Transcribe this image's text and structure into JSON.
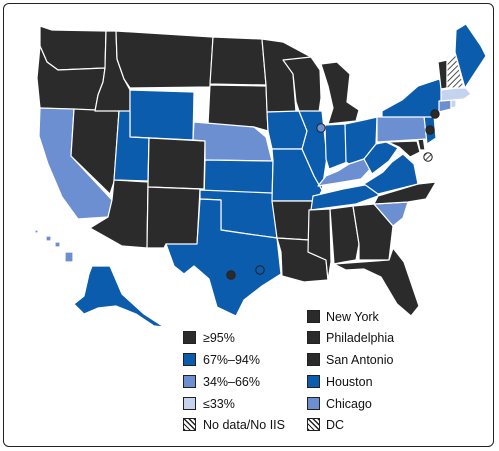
{
  "legend": {
    "coverage": [
      {
        "label": "≥95%",
        "color": "#2b2b2b"
      },
      {
        "label": "67%–94%",
        "color": "#0b5cad"
      },
      {
        "label": "34%–66%",
        "color": "#6b8fd1"
      },
      {
        "label": "≤33%",
        "color": "#c5d3ee"
      },
      {
        "label": "No data/No IIS",
        "color": "hatch"
      }
    ],
    "cities": [
      {
        "label": "New York",
        "color": "#2b2b2b"
      },
      {
        "label": "Philadelphia",
        "color": "#2b2b2b"
      },
      {
        "label": "San Antonio",
        "color": "#2b2b2b"
      },
      {
        "label": "Houston",
        "color": "#0b5cad"
      },
      {
        "label": "Chicago",
        "color": "#6b8fd1"
      },
      {
        "label": "DC",
        "color": "hatch"
      }
    ]
  },
  "states": [
    {
      "name": "Washington",
      "color": "#2b2b2b"
    },
    {
      "name": "Oregon",
      "color": "#2b2b2b"
    },
    {
      "name": "California",
      "color": "#6b8fd1"
    },
    {
      "name": "Nevada",
      "color": "#2b2b2b"
    },
    {
      "name": "Idaho",
      "color": "#2b2b2b"
    },
    {
      "name": "Montana",
      "color": "#2b2b2b"
    },
    {
      "name": "Wyoming",
      "color": "#0b5cad"
    },
    {
      "name": "Utah",
      "color": "#0b5cad"
    },
    {
      "name": "Arizona",
      "color": "#2b2b2b"
    },
    {
      "name": "Colorado",
      "color": "#2b2b2b"
    },
    {
      "name": "New Mexico",
      "color": "#2b2b2b"
    },
    {
      "name": "North Dakota",
      "color": "#2b2b2b"
    },
    {
      "name": "South Dakota",
      "color": "#2b2b2b"
    },
    {
      "name": "Nebraska",
      "color": "#6b8fd1"
    },
    {
      "name": "Kansas",
      "color": "#0b5cad"
    },
    {
      "name": "Oklahoma",
      "color": "#0b5cad"
    },
    {
      "name": "Texas",
      "color": "#0b5cad"
    },
    {
      "name": "Minnesota",
      "color": "#2b2b2b"
    },
    {
      "name": "Iowa",
      "color": "#0b5cad"
    },
    {
      "name": "Missouri",
      "color": "#0b5cad"
    },
    {
      "name": "Arkansas",
      "color": "#2b2b2b"
    },
    {
      "name": "Louisiana",
      "color": "#2b2b2b"
    },
    {
      "name": "Wisconsin",
      "color": "#2b2b2b"
    },
    {
      "name": "Illinois",
      "color": "#0b5cad"
    },
    {
      "name": "Michigan",
      "color": "#2b2b2b"
    },
    {
      "name": "Indiana",
      "color": "#0b5cad"
    },
    {
      "name": "Ohio",
      "color": "#0b5cad"
    },
    {
      "name": "Kentucky",
      "color": "#6b8fd1"
    },
    {
      "name": "Tennessee",
      "color": "#0b5cad"
    },
    {
      "name": "Mississippi",
      "color": "#2b2b2b"
    },
    {
      "name": "Alabama",
      "color": "#2b2b2b"
    },
    {
      "name": "Georgia",
      "color": "#2b2b2b"
    },
    {
      "name": "Florida",
      "color": "#2b2b2b"
    },
    {
      "name": "South Carolina",
      "color": "#6b8fd1"
    },
    {
      "name": "North Carolina",
      "color": "#2b2b2b"
    },
    {
      "name": "Virginia",
      "color": "#0b5cad"
    },
    {
      "name": "West Virginia",
      "color": "#0b5cad"
    },
    {
      "name": "Maryland",
      "color": "#2b2b2b"
    },
    {
      "name": "Delaware",
      "color": "#2b2b2b"
    },
    {
      "name": "Pennsylvania",
      "color": "#6b8fd1"
    },
    {
      "name": "New Jersey",
      "color": "#0b5cad"
    },
    {
      "name": "New York",
      "color": "#0b5cad"
    },
    {
      "name": "Connecticut",
      "color": "#6b8fd1"
    },
    {
      "name": "Rhode Island",
      "color": "#c5d3ee"
    },
    {
      "name": "Massachusetts",
      "color": "#c5d3ee"
    },
    {
      "name": "Vermont",
      "color": "#2b2b2b"
    },
    {
      "name": "New Hampshire",
      "color": "hatch"
    },
    {
      "name": "Maine",
      "color": "#0b5cad"
    },
    {
      "name": "Alaska",
      "color": "#0b5cad"
    },
    {
      "name": "Hawaii",
      "color": "#6b8fd1"
    }
  ],
  "cities": [
    {
      "name": "New York",
      "color": "#2b2b2b"
    },
    {
      "name": "Philadelphia",
      "color": "#2b2b2b"
    },
    {
      "name": "San Antonio",
      "color": "#2b2b2b"
    },
    {
      "name": "Houston",
      "color": "#0b5cad"
    },
    {
      "name": "Chicago",
      "color": "#6b8fd1"
    },
    {
      "name": "DC",
      "color": "hatch"
    }
  ]
}
